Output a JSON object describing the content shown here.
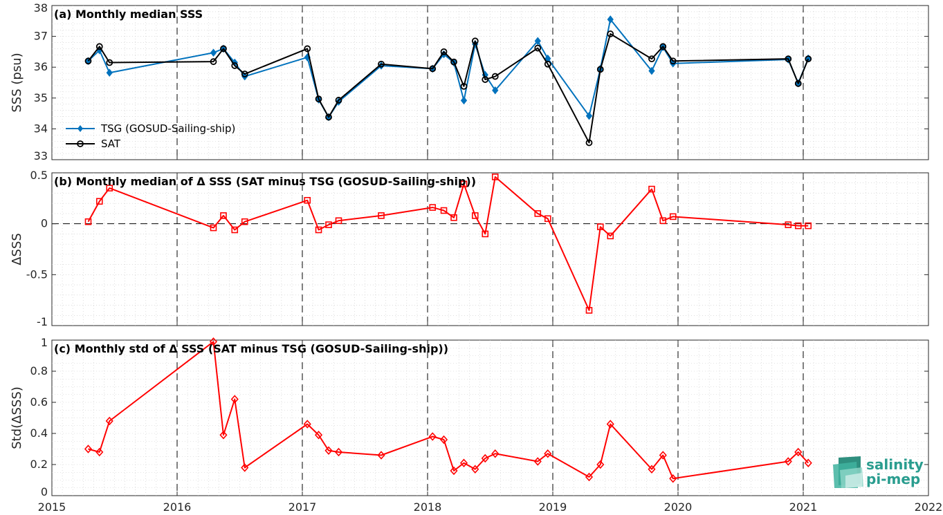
{
  "colors": {
    "tsg": "#0072BD",
    "sat": "#000000",
    "delta": "#FF0000",
    "logo": "#2a9d8f"
  },
  "logo": {
    "line1": "salinity",
    "line2": "pi-mep"
  },
  "chart_data": [
    {
      "type": "line",
      "title": "(a) Monthly median SSS",
      "ylabel": "SSS (psu)",
      "xlim": [
        2015,
        2022
      ],
      "ylim": [
        33,
        38
      ],
      "xticks": [
        "2015",
        "2016",
        "2017",
        "2018",
        "2019",
        "2020",
        "2021",
        "2022"
      ],
      "yticks": [
        "33",
        "34",
        "35",
        "36",
        "37",
        "38"
      ],
      "legend": {
        "position": "bottom-left",
        "entries": [
          "TSG (GOSUD-Sailing-ship)",
          "SAT"
        ]
      },
      "series": [
        {
          "name": "TSG (GOSUD-Sailing-ship)",
          "color": "#0072BD",
          "marker": "diamond-filled",
          "x": [
            2015.29,
            2015.38,
            2015.46,
            2016.29,
            2016.37,
            2016.46,
            2016.54,
            2017.04,
            2017.13,
            2017.21,
            2017.29,
            2017.63,
            2018.04,
            2018.13,
            2018.21,
            2018.29,
            2018.38,
            2018.46,
            2018.54,
            2018.88,
            2018.96,
            2019.29,
            2019.38,
            2019.46,
            2019.79,
            2019.88,
            2019.96,
            2020.88,
            2020.96,
            2021.04
          ],
          "y": [
            36.2,
            36.55,
            35.82,
            36.47,
            36.6,
            36.15,
            35.7,
            36.32,
            34.95,
            34.38,
            34.88,
            36.05,
            35.95,
            36.42,
            36.15,
            34.92,
            36.75,
            35.75,
            35.25,
            36.85,
            36.28,
            34.42,
            35.95,
            37.55,
            35.88,
            36.65,
            36.12,
            36.25,
            35.48,
            36.28
          ]
        },
        {
          "name": "SAT",
          "color": "#000000",
          "marker": "circle-open",
          "x": [
            2015.29,
            2015.38,
            2015.46,
            2016.29,
            2016.37,
            2016.46,
            2016.54,
            2017.04,
            2017.13,
            2017.21,
            2017.29,
            2017.63,
            2018.04,
            2018.13,
            2018.21,
            2018.29,
            2018.38,
            2018.46,
            2018.54,
            2018.88,
            2018.96,
            2019.29,
            2019.38,
            2019.46,
            2019.79,
            2019.88,
            2019.96,
            2020.88,
            2020.96,
            2021.04
          ],
          "y": [
            36.2,
            36.67,
            36.15,
            36.18,
            36.6,
            36.05,
            35.78,
            36.6,
            34.97,
            34.38,
            34.93,
            36.1,
            35.95,
            36.5,
            36.17,
            35.38,
            36.85,
            35.6,
            35.7,
            36.62,
            36.1,
            33.55,
            35.93,
            37.08,
            36.27,
            36.67,
            36.2,
            36.27,
            35.47,
            36.27
          ]
        }
      ]
    },
    {
      "type": "line",
      "title": "(b) Monthly median of Δ SSS (SAT minus TSG (GOSUD-Sailing-ship))",
      "ylabel": "ΔSSS",
      "xlim": [
        2015,
        2022
      ],
      "ylim": [
        -1,
        0.5
      ],
      "xticks": [
        "2015",
        "2016",
        "2017",
        "2018",
        "2019",
        "2020",
        "2021",
        "2022"
      ],
      "yticks": [
        "-1",
        "-0.5",
        "0",
        "0.5"
      ],
      "series": [
        {
          "color": "#FF0000",
          "marker": "square-open",
          "x": [
            2015.29,
            2015.38,
            2015.46,
            2016.29,
            2016.37,
            2016.46,
            2016.54,
            2017.04,
            2017.13,
            2017.21,
            2017.29,
            2017.63,
            2018.04,
            2018.13,
            2018.21,
            2018.29,
            2018.38,
            2018.46,
            2018.54,
            2018.88,
            2018.96,
            2019.29,
            2019.38,
            2019.46,
            2019.79,
            2019.88,
            2019.96,
            2020.88,
            2020.96,
            2021.04
          ],
          "y": [
            0.02,
            0.22,
            0.35,
            -0.04,
            0.08,
            -0.06,
            0.02,
            0.23,
            -0.06,
            -0.01,
            0.03,
            0.08,
            0.16,
            0.13,
            0.06,
            0.39,
            0.08,
            -0.1,
            0.46,
            0.1,
            0.05,
            -0.85,
            -0.03,
            -0.12,
            0.34,
            0.03,
            0.07,
            -0.01,
            -0.02,
            -0.02
          ]
        }
      ]
    },
    {
      "type": "line",
      "title": "(c) Monthly std of Δ SSS (SAT minus TSG (GOSUD-Sailing-ship))",
      "ylabel": "Std(ΔSSS)",
      "xlim": [
        2015,
        2022
      ],
      "ylim": [
        0,
        1
      ],
      "xticks": [
        "2015",
        "2016",
        "2017",
        "2018",
        "2019",
        "2020",
        "2021",
        "2022"
      ],
      "yticks": [
        "0",
        "0.2",
        "0.4",
        "0.6",
        "0.8",
        "1"
      ],
      "series": [
        {
          "color": "#FF0000",
          "marker": "diamond-open",
          "x": [
            2015.29,
            2015.38,
            2015.46,
            2016.29,
            2016.37,
            2016.46,
            2016.54,
            2017.04,
            2017.13,
            2017.21,
            2017.29,
            2017.63,
            2018.04,
            2018.13,
            2018.21,
            2018.29,
            2018.38,
            2018.46,
            2018.54,
            2018.88,
            2018.96,
            2019.29,
            2019.38,
            2019.46,
            2019.79,
            2019.88,
            2019.96,
            2020.88,
            2020.96,
            2021.04
          ],
          "y": [
            0.3,
            0.28,
            0.48,
            0.99,
            0.39,
            0.62,
            0.18,
            0.46,
            0.39,
            0.29,
            0.28,
            0.26,
            0.38,
            0.36,
            0.16,
            0.21,
            0.17,
            0.24,
            0.27,
            0.22,
            0.27,
            0.12,
            0.2,
            0.46,
            0.17,
            0.26,
            0.11,
            0.22,
            0.28,
            0.21
          ]
        }
      ]
    }
  ]
}
